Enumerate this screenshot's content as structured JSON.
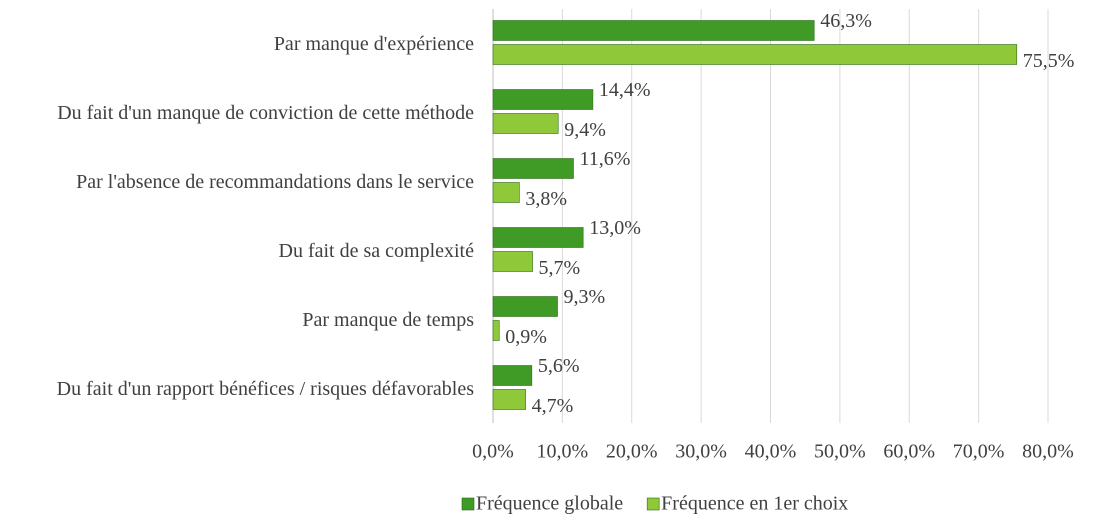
{
  "chart_data": {
    "type": "hbar",
    "categories": [
      "Par manque d'expérience",
      "Du fait d'un manque de conviction de cette méthode",
      "Par l'absence de recommandations dans le service",
      "Du fait de sa complexité",
      "Par manque de temps",
      "Du fait d'un rapport bénéfices / risques défavorables"
    ],
    "series": [
      {
        "name": "Fréquence globale",
        "color": "#3f9b26",
        "values": [
          46.3,
          14.4,
          11.6,
          13.0,
          9.3,
          5.6
        ],
        "value_labels": [
          "46,3%",
          "14,4%",
          "11,6%",
          "13,0%",
          "9,3%",
          "5,6%"
        ]
      },
      {
        "name": "Fréquence en 1er choix",
        "color": "#8fc93a",
        "values": [
          75.5,
          9.4,
          3.8,
          5.7,
          0.9,
          4.7
        ],
        "value_labels": [
          "75,5%",
          "9,4%",
          "3,8%",
          "5,7%",
          "0,9%",
          "4,7%"
        ]
      }
    ],
    "xlim": [
      0,
      80
    ],
    "xticks": [
      {
        "value": 0,
        "label": "0,0%"
      },
      {
        "value": 10,
        "label": "10,0%"
      },
      {
        "value": 20,
        "label": "20,0%"
      },
      {
        "value": 30,
        "label": "30,0%"
      },
      {
        "value": 40,
        "label": "40,0%"
      },
      {
        "value": 50,
        "label": "50,0%"
      },
      {
        "value": 60,
        "label": "60,0%"
      },
      {
        "value": 70,
        "label": "70,0%"
      },
      {
        "value": 80,
        "label": "80,0%"
      }
    ],
    "grid": true,
    "legend": "bottom"
  }
}
